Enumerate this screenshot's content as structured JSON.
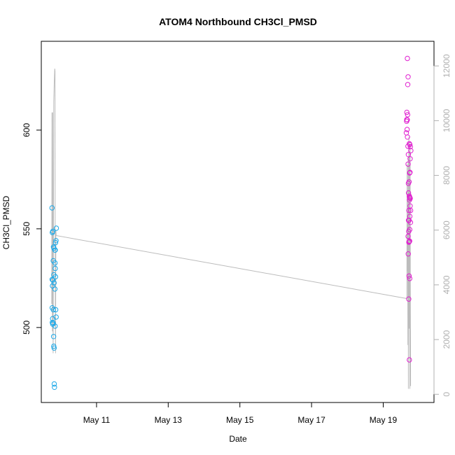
{
  "chart_data": {
    "type": "scatter",
    "title": "ATOM4 Northbound CH3Cl_PMSD",
    "xlabel": "Date",
    "ylabel": "CH3Cl_PMSD",
    "xlim": [
      "2016-05-09T11:00",
      "2016-05-20T10:00"
    ],
    "ylim": [
      462,
      645
    ],
    "y2lim": [
      -300,
      12900
    ],
    "x_ticks": [
      {
        "label": "May 11",
        "value": "2016-05-11T00:00"
      },
      {
        "label": "May 13",
        "value": "2016-05-13T00:00"
      },
      {
        "label": "May 15",
        "value": "2016-05-15T00:00"
      },
      {
        "label": "May 17",
        "value": "2016-05-17T00:00"
      },
      {
        "label": "May 19",
        "value": "2016-05-19T00:00"
      }
    ],
    "y_ticks": [
      500,
      550,
      600
    ],
    "y2_ticks": [
      0,
      2000,
      4000,
      6000,
      8000,
      10000,
      12000
    ],
    "grid": false,
    "legend": "none",
    "colors": {
      "series1": "#1ba8e8",
      "series2": "#e020d0",
      "line": "#bcbcbc",
      "axis2": "#b0b0b0"
    },
    "series": [
      {
        "marker": "circle",
        "color": "#1ba8e8",
        "points": [
          [
            "2016-05-09T18:10",
            560.6
          ],
          [
            "2016-05-09T18:25",
            548.1
          ],
          [
            "2016-05-09T18:40",
            548.7
          ],
          [
            "2016-05-09T18:15",
            524.3
          ],
          [
            "2016-05-09T18:30",
            521.1
          ],
          [
            "2016-05-09T18:45",
            524.0
          ],
          [
            "2016-05-09T18:20",
            510.0
          ],
          [
            "2016-05-09T18:35",
            504.5
          ],
          [
            "2016-05-09T18:25",
            502.5
          ],
          [
            "2016-05-09T18:40",
            501.7
          ],
          [
            "2016-05-09T18:55",
            502.3
          ],
          [
            "2016-05-09T19:10",
            540.8
          ],
          [
            "2016-05-09T19:25",
            540.2
          ],
          [
            "2016-05-09T19:00",
            533.8
          ],
          [
            "2016-05-09T19:20",
            526.7
          ],
          [
            "2016-05-09T19:35",
            522.6
          ],
          [
            "2016-05-09T19:05",
            509.0
          ],
          [
            "2016-05-09T19:15",
            495.4
          ],
          [
            "2016-05-09T19:20",
            490.5
          ],
          [
            "2016-05-09T19:35",
            489.6
          ],
          [
            "2016-05-09T19:40",
            471.4
          ],
          [
            "2016-05-09T19:50",
            469.7
          ],
          [
            "2016-05-09T20:05",
            539.2
          ],
          [
            "2016-05-09T20:20",
            539.2
          ],
          [
            "2016-05-09T20:35",
            543.0
          ],
          [
            "2016-05-09T20:50",
            544.0
          ],
          [
            "2016-05-09T21:05",
            550.3
          ],
          [
            "2016-05-09T20:10",
            532.7
          ],
          [
            "2016-05-09T20:20",
            529.9
          ],
          [
            "2016-05-09T20:30",
            525.7
          ],
          [
            "2016-05-09T20:05",
            519.5
          ],
          [
            "2016-05-09T20:40",
            509.0
          ],
          [
            "2016-05-09T20:15",
            500.7
          ],
          [
            "2016-05-09T20:55",
            505.3
          ]
        ]
      },
      {
        "marker": "circle",
        "color": "#e020d0",
        "points": [
          [
            "2016-05-19T16:10",
            636.3
          ],
          [
            "2016-05-19T16:40",
            627.0
          ],
          [
            "2016-05-19T16:25",
            623.1
          ],
          [
            "2016-05-19T15:50",
            609.0
          ],
          [
            "2016-05-19T16:20",
            607.8
          ],
          [
            "2016-05-19T15:45",
            605.3
          ],
          [
            "2016-05-19T16:05",
            605.2
          ],
          [
            "2016-05-19T15:40",
            604.5
          ],
          [
            "2016-05-19T16:00",
            600.3
          ],
          [
            "2016-05-19T15:30",
            598.6
          ],
          [
            "2016-05-19T16:15",
            596.5
          ],
          [
            "2016-05-19T16:35",
            591.8
          ],
          [
            "2016-05-19T17:30",
            593.1
          ],
          [
            "2016-05-19T17:50",
            592.7
          ],
          [
            "2016-05-19T18:10",
            591.6
          ],
          [
            "2016-05-19T18:30",
            589.6
          ],
          [
            "2016-05-19T16:50",
            587.6
          ],
          [
            "2016-05-19T18:00",
            585.5
          ],
          [
            "2016-05-19T16:40",
            582.8
          ],
          [
            "2016-05-19T17:40",
            578.3
          ],
          [
            "2016-05-19T17:55",
            578.6
          ],
          [
            "2016-05-19T17:20",
            573.8
          ],
          [
            "2016-05-19T16:50",
            573.0
          ],
          [
            "2016-05-19T16:55",
            568.2
          ],
          [
            "2016-05-19T17:30",
            566.6
          ],
          [
            "2016-05-19T17:40",
            566.0
          ],
          [
            "2016-05-19T17:50",
            565.7
          ],
          [
            "2016-05-19T18:05",
            565.4
          ],
          [
            "2016-05-19T17:35",
            564.6
          ],
          [
            "2016-05-19T18:00",
            561.6
          ],
          [
            "2016-05-19T17:10",
            559.3
          ],
          [
            "2016-05-19T18:20",
            559.3
          ],
          [
            "2016-05-19T17:50",
            556.3
          ],
          [
            "2016-05-19T17:15",
            554.3
          ],
          [
            "2016-05-19T16:55",
            554.3
          ],
          [
            "2016-05-19T18:15",
            553.2
          ],
          [
            "2016-05-19T17:45",
            549.6
          ],
          [
            "2016-05-19T17:05",
            548.7
          ],
          [
            "2016-05-19T16:40",
            546.2
          ],
          [
            "2016-05-19T17:10",
            543.2
          ],
          [
            "2016-05-19T17:25",
            543.5
          ],
          [
            "2016-05-19T17:40",
            543.8
          ],
          [
            "2016-05-19T16:45",
            537.3
          ],
          [
            "2016-05-19T17:20",
            526.1
          ],
          [
            "2016-05-19T17:45",
            524.8
          ],
          [
            "2016-05-19T17:05",
            514.4
          ],
          [
            "2016-05-19T17:30",
            483.6
          ]
        ]
      }
    ],
    "line_series": {
      "axis": "right",
      "color": "#bcbcbc",
      "points": [
        [
          "2016-05-09T18:00",
          3300
        ],
        [
          "2016-05-09T18:10",
          10300
        ],
        [
          "2016-05-09T18:20",
          5500
        ],
        [
          "2016-05-09T18:25",
          2300
        ],
        [
          "2016-05-09T18:35",
          10300
        ],
        [
          "2016-05-09T18:45",
          5200
        ],
        [
          "2016-05-09T18:55",
          1500
        ],
        [
          "2016-05-09T19:05",
          3800
        ],
        [
          "2016-05-09T19:20",
          10700
        ],
        [
          "2016-05-09T19:40",
          11400
        ],
        [
          "2016-05-09T20:00",
          11900
        ],
        [
          "2016-05-09T20:10",
          11800
        ],
        [
          "2016-05-09T20:20",
          3900
        ],
        [
          "2016-05-09T20:35",
          1500
        ],
        [
          "2016-05-09T20:45",
          6000
        ],
        [
          "2016-05-09T21:00",
          5800
        ],
        [
          "2016-05-19T15:50",
          3500
        ],
        [
          "2016-05-19T16:00",
          8400
        ],
        [
          "2016-05-19T16:10",
          4500
        ],
        [
          "2016-05-19T16:20",
          6500
        ],
        [
          "2016-05-19T16:30",
          1800
        ],
        [
          "2016-05-19T16:40",
          8600
        ],
        [
          "2016-05-19T16:50",
          200
        ],
        [
          "2016-05-19T17:00",
          5300
        ],
        [
          "2016-05-19T17:10",
          9400
        ],
        [
          "2016-05-19T17:20",
          2400
        ],
        [
          "2016-05-19T17:30",
          8900
        ],
        [
          "2016-05-19T17:40",
          3700
        ],
        [
          "2016-05-19T17:50",
          200
        ],
        [
          "2016-05-19T18:00",
          9200
        ],
        [
          "2016-05-19T18:10",
          4200
        ],
        [
          "2016-05-19T18:20",
          300
        ]
      ]
    }
  }
}
